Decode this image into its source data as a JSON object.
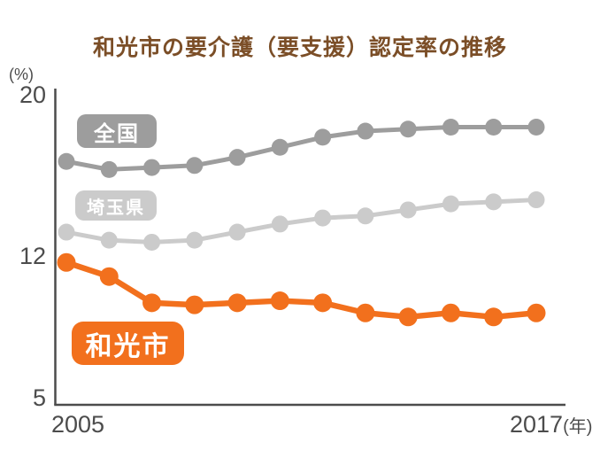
{
  "title": "和光市の要介護（要支援）認定率の推移",
  "chart_data": {
    "type": "line",
    "title": "和光市の要介護（要支援）認定率の推移",
    "y_axis": {
      "unit": "(%)",
      "ticks": [
        "20",
        "12",
        "5"
      ],
      "range": [
        5,
        20
      ],
      "grid": false
    },
    "x_axis": {
      "start_label": "2005",
      "end_label": "2017",
      "unit_suffix": "(年)",
      "n_points": 12
    },
    "legend_position": "inline-badges-near-lines",
    "series": [
      {
        "key": "national",
        "name": "全国",
        "color": "#9d9d9d",
        "values": [
          16.7,
          16.3,
          16.4,
          16.5,
          16.9,
          17.4,
          17.9,
          18.2,
          18.3,
          18.4,
          18.4,
          18.4
        ]
      },
      {
        "key": "saitama-pref",
        "name": "埼玉県",
        "color": "#cbcbcb",
        "values": [
          13.2,
          12.8,
          12.7,
          12.8,
          13.2,
          13.6,
          13.9,
          14.0,
          14.3,
          14.6,
          14.7,
          14.8
        ]
      },
      {
        "key": "wako-city",
        "name": "和光市",
        "color": "#f2701d",
        "values": [
          11.7,
          11.0,
          9.7,
          9.6,
          9.7,
          9.8,
          9.7,
          9.2,
          9.0,
          9.2,
          9.0,
          9.2
        ]
      }
    ],
    "colors": {
      "title_text": "#7b4e27",
      "axis": "#4c4c4c",
      "tick_text": "#4c4c4c",
      "badge_text": "#ffffff",
      "background": "#ffffff"
    }
  }
}
